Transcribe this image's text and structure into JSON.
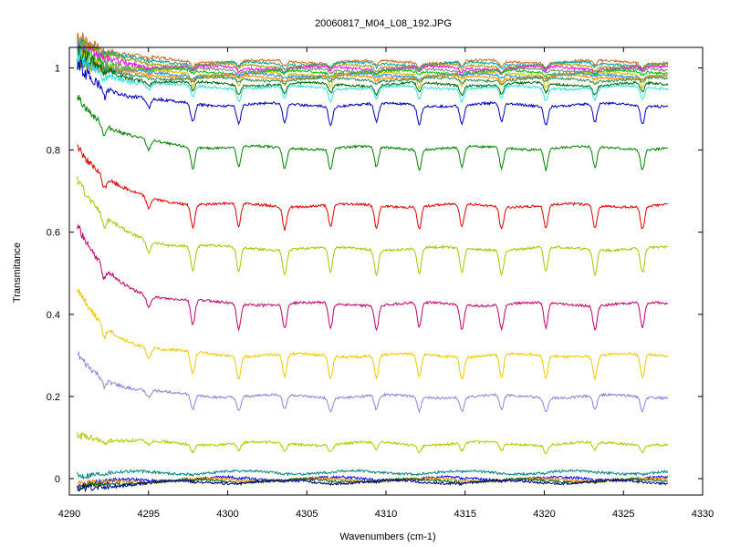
{
  "chart_data": {
    "type": "line",
    "title": "20060817_M04_L08_192.JPG",
    "xlabel": "Wavenumbers (cm-1)",
    "ylabel": "Transmitance",
    "xlim": [
      4290,
      4330
    ],
    "ylim": [
      -0.04,
      1.05
    ],
    "grid": false,
    "legend": "none",
    "x_ticks": [
      "4290",
      "4295",
      "4300",
      "4305",
      "4310",
      "4315",
      "4320",
      "4325",
      "4330"
    ],
    "y_ticks": [
      "0",
      "0.2",
      "0.4",
      "0.6",
      "0.8",
      "1"
    ],
    "x_data_range": [
      4290.5,
      4327.8
    ],
    "absorption_lines": [
      4292.2,
      4295.0,
      4297.8,
      4300.7,
      4303.6,
      4306.5,
      4309.4,
      4312.1,
      4314.8,
      4317.3,
      4320.1,
      4323.2,
      4326.2
    ],
    "series": [
      {
        "color": "#d2691e",
        "baseline": 1.015,
        "drift": 0.07,
        "depth": 0.012
      },
      {
        "color": "#00a0a0",
        "baseline": 1.01,
        "drift": 0.06,
        "depth": 0.01
      },
      {
        "color": "#a0a000",
        "baseline": 1.005,
        "drift": 0.06,
        "depth": 0.012
      },
      {
        "color": "#ff00ff",
        "baseline": 1.0,
        "drift": 0.05,
        "depth": 0.01
      },
      {
        "color": "#808080",
        "baseline": 0.995,
        "drift": 0.05,
        "depth": 0.008
      },
      {
        "color": "#00c000",
        "baseline": 0.99,
        "drift": 0.05,
        "depth": 0.008
      },
      {
        "color": "#d4c000",
        "baseline": 0.985,
        "drift": 0.05,
        "depth": 0.03
      },
      {
        "color": "#1e90ff",
        "baseline": 0.982,
        "drift": 0.04,
        "depth": 0.006
      },
      {
        "color": "#ff8c00",
        "baseline": 0.978,
        "drift": 0.04,
        "depth": 0.006
      },
      {
        "color": "#2e8b57",
        "baseline": 0.972,
        "drift": 0.05,
        "depth": 0.008
      },
      {
        "color": "#006400",
        "baseline": 0.96,
        "drift": 0.08,
        "depth": 0.022
      },
      {
        "color": "#30e0e0",
        "baseline": 0.952,
        "drift": 0.08,
        "depth": 0.03
      },
      {
        "color": "#0000c0",
        "baseline": 0.91,
        "drift": 0.1,
        "depth": 0.045
      },
      {
        "color": "#008000",
        "baseline": 0.805,
        "drift": 0.13,
        "depth": 0.05
      },
      {
        "color": "#e00000",
        "baseline": 0.665,
        "drift": 0.15,
        "depth": 0.055
      },
      {
        "color": "#a0c800",
        "baseline": 0.56,
        "drift": 0.17,
        "depth": 0.06
      },
      {
        "color": "#c0006e",
        "baseline": 0.425,
        "drift": 0.19,
        "depth": 0.06
      },
      {
        "color": "#f0c800",
        "baseline": 0.3,
        "drift": 0.16,
        "depth": 0.055
      },
      {
        "color": "#9080e0",
        "baseline": 0.2,
        "drift": 0.1,
        "depth": 0.035
      },
      {
        "color": "#b4c800",
        "baseline": 0.085,
        "drift": 0.025,
        "depth": 0.018
      },
      {
        "color": "#008080",
        "baseline": 0.015,
        "drift": -0.005,
        "depth": 0.002
      },
      {
        "color": "#0000ff",
        "baseline": 0.0,
        "drift": -0.02,
        "depth": 0.003
      },
      {
        "color": "#ff8c00",
        "baseline": -0.003,
        "drift": -0.015,
        "depth": 0.002
      },
      {
        "color": "#006400",
        "baseline": -0.005,
        "drift": -0.02,
        "depth": 0.002
      },
      {
        "color": "#000080",
        "baseline": -0.008,
        "drift": -0.02,
        "depth": 0.002
      }
    ]
  }
}
